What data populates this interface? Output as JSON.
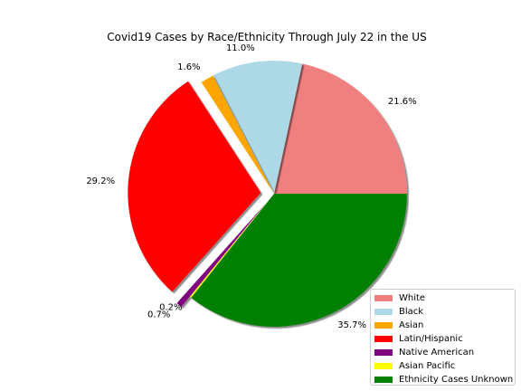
{
  "chart_data": {
    "type": "pie",
    "title": "Covid19 Cases by Race/Ethnicity Through July 22 in the US",
    "slices": [
      {
        "label": "White",
        "value": 21.6,
        "pct_label": "21.6%",
        "color": "#f08080",
        "explode": false
      },
      {
        "label": "Black",
        "value": 11.0,
        "pct_label": "11.0%",
        "color": "#add8e6",
        "explode": false
      },
      {
        "label": "Asian",
        "value": 1.6,
        "pct_label": "1.6%",
        "color": "#ffa500",
        "explode": false
      },
      {
        "label": "Latin/Hispanic",
        "value": 29.2,
        "pct_label": "29.2%",
        "color": "#ff0000",
        "explode": true
      },
      {
        "label": "Native American",
        "value": 0.7,
        "pct_label": "0.7%",
        "color": "#800080",
        "explode": true
      },
      {
        "label": "Asian Pacific",
        "value": 0.2,
        "pct_label": "0.2%",
        "color": "#ffff00",
        "explode": false
      },
      {
        "label": "Ethnicity Cases Unknown",
        "value": 35.7,
        "pct_label": "35.7%",
        "color": "#008000",
        "explode": false
      }
    ],
    "start_angle_deg": 0,
    "direction": "counterclockwise",
    "shadow": true,
    "legend_position": "lower-right"
  }
}
